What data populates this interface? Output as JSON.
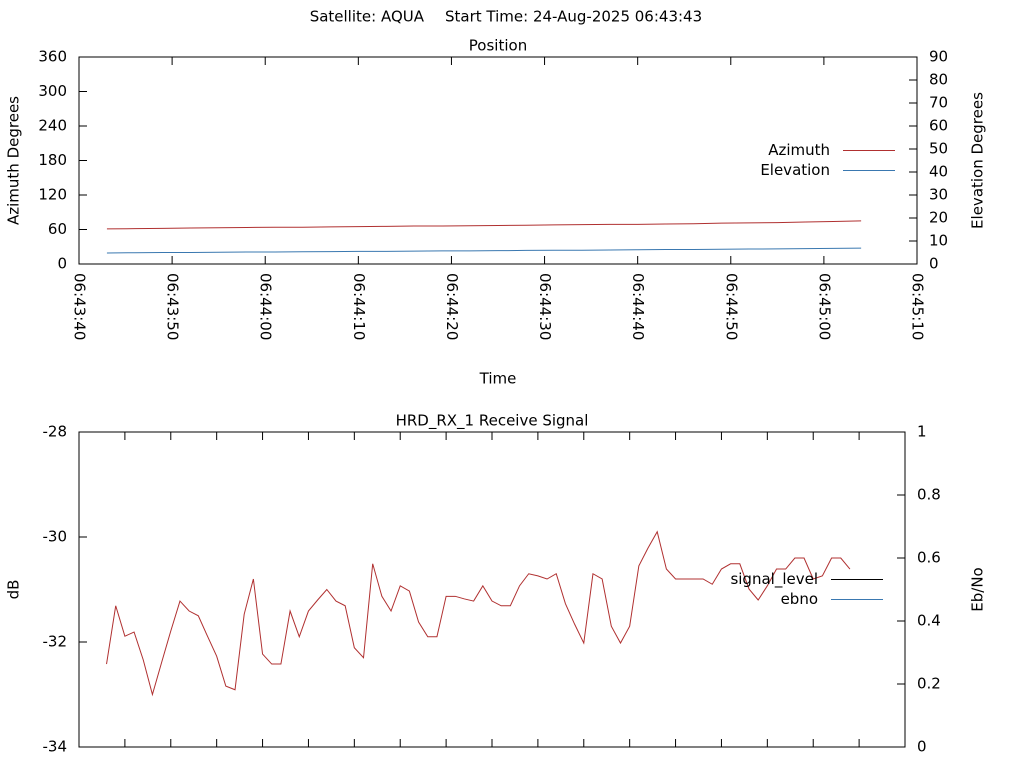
{
  "header": {
    "satellite": "Satellite: AQUA",
    "start_time": "Start Time: 24-Aug-2025 06:43:43"
  },
  "chart_data": [
    {
      "type": "line",
      "title": "Position",
      "x_label": "Time",
      "y_label": "Azimuth Degrees",
      "y2_label": "Elevation Degrees",
      "x": [
        "06:43:43",
        "06:43:46",
        "06:43:49",
        "06:43:52",
        "06:43:55",
        "06:43:58",
        "06:44:01",
        "06:44:04",
        "06:44:07",
        "06:44:10",
        "06:44:13",
        "06:44:16",
        "06:44:19",
        "06:44:22",
        "06:44:25",
        "06:44:28",
        "06:44:31",
        "06:44:34",
        "06:44:37",
        "06:44:40",
        "06:44:43",
        "06:44:46",
        "06:44:49",
        "06:44:52",
        "06:44:55",
        "06:44:58",
        "06:45:01",
        "06:45:04"
      ],
      "series": [
        {
          "name": "Azimuth",
          "color": "#b03030",
          "values": [
            61,
            61.5,
            62,
            62.5,
            63,
            63.5,
            64,
            64,
            64.5,
            65,
            65.5,
            66,
            66,
            66.5,
            67,
            67.5,
            68,
            68.5,
            69,
            69,
            69.5,
            70,
            71,
            71.5,
            72,
            73,
            74,
            75
          ]
        },
        {
          "name": "Elevation",
          "color": "#3a78b0",
          "axis": "y2",
          "values": [
            4.8,
            4.9,
            5,
            5,
            5.1,
            5.2,
            5.2,
            5.3,
            5.4,
            5.5,
            5.5,
            5.6,
            5.7,
            5.7,
            5.8,
            5.9,
            6,
            6,
            6.1,
            6.2,
            6.3,
            6.3,
            6.4,
            6.5,
            6.6,
            6.7,
            6.8,
            6.9
          ]
        }
      ],
      "xlim": [
        "06:43:40",
        "06:45:10"
      ],
      "xticks": [
        "06:43:40",
        "06:43:50",
        "06:44:00",
        "06:44:10",
        "06:44:20",
        "06:44:30",
        "06:44:40",
        "06:44:50",
        "06:45:00",
        "06:45:10"
      ],
      "show_xtick_labels": true,
      "ylim": [
        0,
        360
      ],
      "yticks": [
        0,
        60,
        120,
        180,
        240,
        300,
        360
      ],
      "y2lim": [
        0,
        90
      ],
      "y2ticks": [
        0,
        10,
        20,
        30,
        40,
        50,
        60,
        70,
        80,
        90
      ],
      "legend": "right"
    },
    {
      "type": "line",
      "title": "HRD_RX_1 Receive Signal",
      "y_label": "dB",
      "y2_label": "Eb/No",
      "x": [
        "06:43:43",
        "06:43:44",
        "06:43:45",
        "06:43:46",
        "06:43:47",
        "06:43:48",
        "06:43:49",
        "06:43:50",
        "06:43:51",
        "06:43:52",
        "06:43:53",
        "06:43:54",
        "06:43:55",
        "06:43:56",
        "06:43:57",
        "06:43:58",
        "06:43:59",
        "06:44:00",
        "06:44:01",
        "06:44:02",
        "06:44:03",
        "06:44:04",
        "06:44:05",
        "06:44:06",
        "06:44:07",
        "06:44:08",
        "06:44:09",
        "06:44:10",
        "06:44:11",
        "06:44:12",
        "06:44:13",
        "06:44:14",
        "06:44:15",
        "06:44:16",
        "06:44:17",
        "06:44:18",
        "06:44:19",
        "06:44:20",
        "06:44:21",
        "06:44:22",
        "06:44:23",
        "06:44:24",
        "06:44:25",
        "06:44:26",
        "06:44:27",
        "06:44:28",
        "06:44:29",
        "06:44:30",
        "06:44:31",
        "06:44:32",
        "06:44:33",
        "06:44:34",
        "06:44:35",
        "06:44:36",
        "06:44:37",
        "06:44:38",
        "06:44:39",
        "06:44:40",
        "06:44:41",
        "06:44:42",
        "06:44:43",
        "06:44:44",
        "06:44:45",
        "06:44:46",
        "06:44:47",
        "06:44:48",
        "06:44:49",
        "06:44:50",
        "06:44:51",
        "06:44:52",
        "06:44:53",
        "06:44:54",
        "06:44:55",
        "06:44:56",
        "06:44:57",
        "06:44:58",
        "06:44:59",
        "06:45:00",
        "06:45:01",
        "06:45:02",
        "06:45:03",
        "06:45:04"
      ],
      "series": [
        {
          "name": "signal_level",
          "color": "#b03030",
          "legend_color": "#000000",
          "values": [
            -32.42,
            -31.31,
            -31.89,
            -31.81,
            -32.34,
            -33.0,
            -32.39,
            -31.79,
            -31.22,
            -31.41,
            -31.5,
            -31.89,
            -32.27,
            -32.84,
            -32.91,
            -31.47,
            -30.8,
            -32.23,
            -32.42,
            -32.42,
            -31.41,
            -31.9,
            -31.41,
            -31.2,
            -31.0,
            -31.22,
            -31.31,
            -32.11,
            -32.3,
            -30.51,
            -31.13,
            -31.41,
            -30.93,
            -31.03,
            -31.62,
            -31.9,
            -31.9,
            -31.13,
            -31.13,
            -31.18,
            -31.22,
            -30.93,
            -31.22,
            -31.31,
            -31.31,
            -30.93,
            -30.7,
            -30.74,
            -30.8,
            -30.7,
            -31.27,
            -31.66,
            -32.02,
            -30.7,
            -30.8,
            -31.7,
            -32.02,
            -31.7,
            -30.55,
            -30.21,
            -29.9,
            -30.61,
            -30.8,
            -30.8,
            -30.8,
            -30.8,
            -30.9,
            -30.61,
            -30.51,
            -30.51,
            -30.99,
            -31.2,
            -30.93,
            -30.61,
            -30.61,
            -30.4,
            -30.4,
            -30.8,
            -30.74,
            -30.4,
            -30.4,
            -30.61
          ]
        },
        {
          "name": "ebno",
          "color": "#3a78b0",
          "axis": "y2",
          "values": [
            null,
            null,
            null,
            null,
            null,
            null,
            null,
            null,
            null,
            null,
            null,
            null,
            null,
            null,
            null,
            null,
            null,
            null,
            null,
            null,
            null,
            null,
            null,
            null,
            null,
            null,
            null,
            null,
            null,
            null,
            null,
            null,
            null,
            null,
            null,
            null,
            null,
            null,
            null,
            null,
            null,
            null,
            null,
            null,
            null,
            null,
            null,
            null,
            null,
            null,
            null,
            null,
            null,
            null,
            null,
            null,
            null,
            null,
            null,
            null,
            null,
            null,
            null,
            null,
            null,
            null,
            null,
            null,
            null,
            null,
            null,
            null,
            null,
            null,
            null,
            null,
            null,
            null,
            null,
            null,
            null,
            null
          ]
        }
      ],
      "xlim": [
        "06:43:40",
        "06:45:10"
      ],
      "xticks": [
        "06:43:45",
        "06:43:50",
        "06:43:55",
        "06:44:00",
        "06:44:05",
        "06:44:10",
        "06:44:15",
        "06:44:20",
        "06:44:25",
        "06:44:30",
        "06:44:35",
        "06:44:40",
        "06:44:45",
        "06:44:50",
        "06:44:55",
        "06:45:00",
        "06:45:05"
      ],
      "show_xtick_labels": false,
      "ylim": [
        -34,
        -28
      ],
      "yticks": [
        -34,
        -32,
        -30,
        -28
      ],
      "y2lim": [
        0,
        1
      ],
      "y2ticks": [
        0,
        0.2,
        0.4,
        0.6,
        0.8,
        1
      ],
      "legend": "right"
    }
  ]
}
